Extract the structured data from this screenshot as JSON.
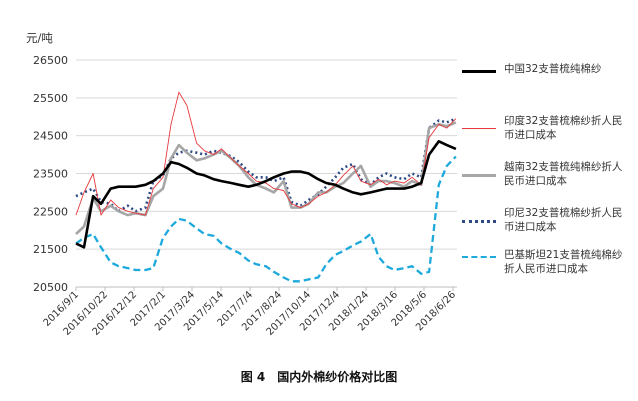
{
  "unit_label": "元/吨",
  "caption": "图 4　国内外棉纱价格对比图",
  "chart_data": {
    "type": "line",
    "title": "",
    "ylabel": "元/吨",
    "ylim": [
      20500,
      26500
    ],
    "yticks": [
      20500,
      21500,
      22500,
      23500,
      24500,
      25500,
      26500
    ],
    "ytick_labels": [
      "20500",
      "21500",
      "22500",
      "23500",
      "24500",
      "25500",
      "26500"
    ],
    "xtick_labels": [
      "2016/9/1",
      "2016/10/22",
      "2016/12/12",
      "2017/2/1",
      "2017/3/24",
      "2017/5/14",
      "2017/7/4",
      "2017/8/24",
      "2017/10/14",
      "2017/12/4",
      "2018/1/24",
      "2018/3/16",
      "2018/5/6",
      "2018/6/26"
    ],
    "x": [
      "2016/9/1",
      "2016/9/15",
      "2016/10/1",
      "2016/10/15",
      "2016/11/1",
      "2016/11/15",
      "2016/12/1",
      "2016/12/15",
      "2017/1/1",
      "2017/1/15",
      "2017/2/1",
      "2017/2/15",
      "2017/3/1",
      "2017/3/15",
      "2017/4/1",
      "2017/4/15",
      "2017/5/1",
      "2017/5/15",
      "2017/6/1",
      "2017/6/15",
      "2017/7/1",
      "2017/7/15",
      "2017/8/1",
      "2017/8/15",
      "2017/9/1",
      "2017/9/15",
      "2017/10/1",
      "2017/10/15",
      "2017/11/1",
      "2017/11/15",
      "2017/12/1",
      "2017/12/15",
      "2018/1/1",
      "2018/1/15",
      "2018/2/1",
      "2018/2/15",
      "2018/3/1",
      "2018/3/15",
      "2018/4/1",
      "2018/4/15",
      "2018/5/1",
      "2018/5/15",
      "2018/6/1",
      "2018/6/15",
      "2018/7/1"
    ],
    "series": [
      {
        "name": "中国32支普梳纯棉纱",
        "color": "#000000",
        "style": "solid",
        "width": 2.6,
        "values": [
          21650,
          21550,
          22900,
          22700,
          23100,
          23150,
          23150,
          23150,
          23200,
          23300,
          23500,
          23800,
          23750,
          23650,
          23500,
          23450,
          23350,
          23300,
          23250,
          23200,
          23150,
          23200,
          23300,
          23400,
          23500,
          23550,
          23550,
          23500,
          23350,
          23250,
          23200,
          23100,
          23000,
          22950,
          23000,
          23050,
          23100,
          23100,
          23100,
          23150,
          23250,
          24000,
          24350,
          24250,
          24150
        ]
      },
      {
        "name": "印度32支普梳棉纱折人民币进口成本",
        "color": "#e8383c",
        "style": "solid",
        "width": 0.9,
        "values": [
          22400,
          23000,
          23500,
          22400,
          22800,
          22600,
          22500,
          22450,
          22400,
          23100,
          23400,
          24800,
          25650,
          25300,
          24300,
          24100,
          24000,
          24150,
          23900,
          23700,
          23500,
          23300,
          23250,
          23100,
          23050,
          22700,
          22600,
          22700,
          22900,
          23000,
          23200,
          23450,
          23700,
          23300,
          23200,
          23350,
          23200,
          23300,
          23250,
          23400,
          23200,
          24450,
          24800,
          24700,
          24950
        ]
      },
      {
        "name": "越南32支普梳纯棉纱折人民币进口成本",
        "color": "#a6a6a6",
        "style": "solid",
        "width": 2.6,
        "values": [
          21900,
          22100,
          22850,
          22500,
          22650,
          22500,
          22400,
          22450,
          22400,
          22900,
          23100,
          23900,
          24250,
          24050,
          23850,
          23900,
          24000,
          24100,
          23900,
          23700,
          23400,
          23200,
          23100,
          23000,
          23300,
          22600,
          22600,
          22700,
          23000,
          23000,
          23150,
          23250,
          23500,
          23700,
          23150,
          23300,
          23300,
          23250,
          23150,
          23300,
          23200,
          24700,
          24800,
          24750,
          24850
        ]
      },
      {
        "name": "印尼32支普梳棉纱折人民币进口成本",
        "color": "#2e4a86",
        "style": "dotted",
        "width": 2.6,
        "values": [
          22900,
          23000,
          23100,
          22750,
          22700,
          22500,
          22650,
          22500,
          22600,
          23300,
          23450,
          23900,
          24050,
          24100,
          24050,
          24000,
          24100,
          24050,
          23950,
          23800,
          23550,
          23400,
          23400,
          23300,
          23400,
          22750,
          22650,
          22800,
          22950,
          23150,
          23400,
          23650,
          23750,
          23350,
          23200,
          23400,
          23500,
          23400,
          23350,
          23500,
          23400,
          24700,
          24900,
          24850,
          24950
        ]
      },
      {
        "name": "巴基斯坦21支普梳纯棉纱折人民币进口成本",
        "color": "#1ea9dc",
        "style": "dashed",
        "width": 2.3,
        "values": [
          21650,
          21800,
          21900,
          21550,
          21150,
          21050,
          21000,
          20950,
          20950,
          21000,
          21800,
          22100,
          22300,
          22250,
          22050,
          21900,
          21850,
          21650,
          21500,
          21400,
          21200,
          21100,
          21050,
          20900,
          20750,
          20650,
          20650,
          20700,
          20750,
          21100,
          21350,
          21450,
          21600,
          21700,
          21900,
          21300,
          21050,
          20950,
          21000,
          21050,
          20850,
          20900,
          23200,
          23700,
          23950
        ]
      }
    ]
  }
}
